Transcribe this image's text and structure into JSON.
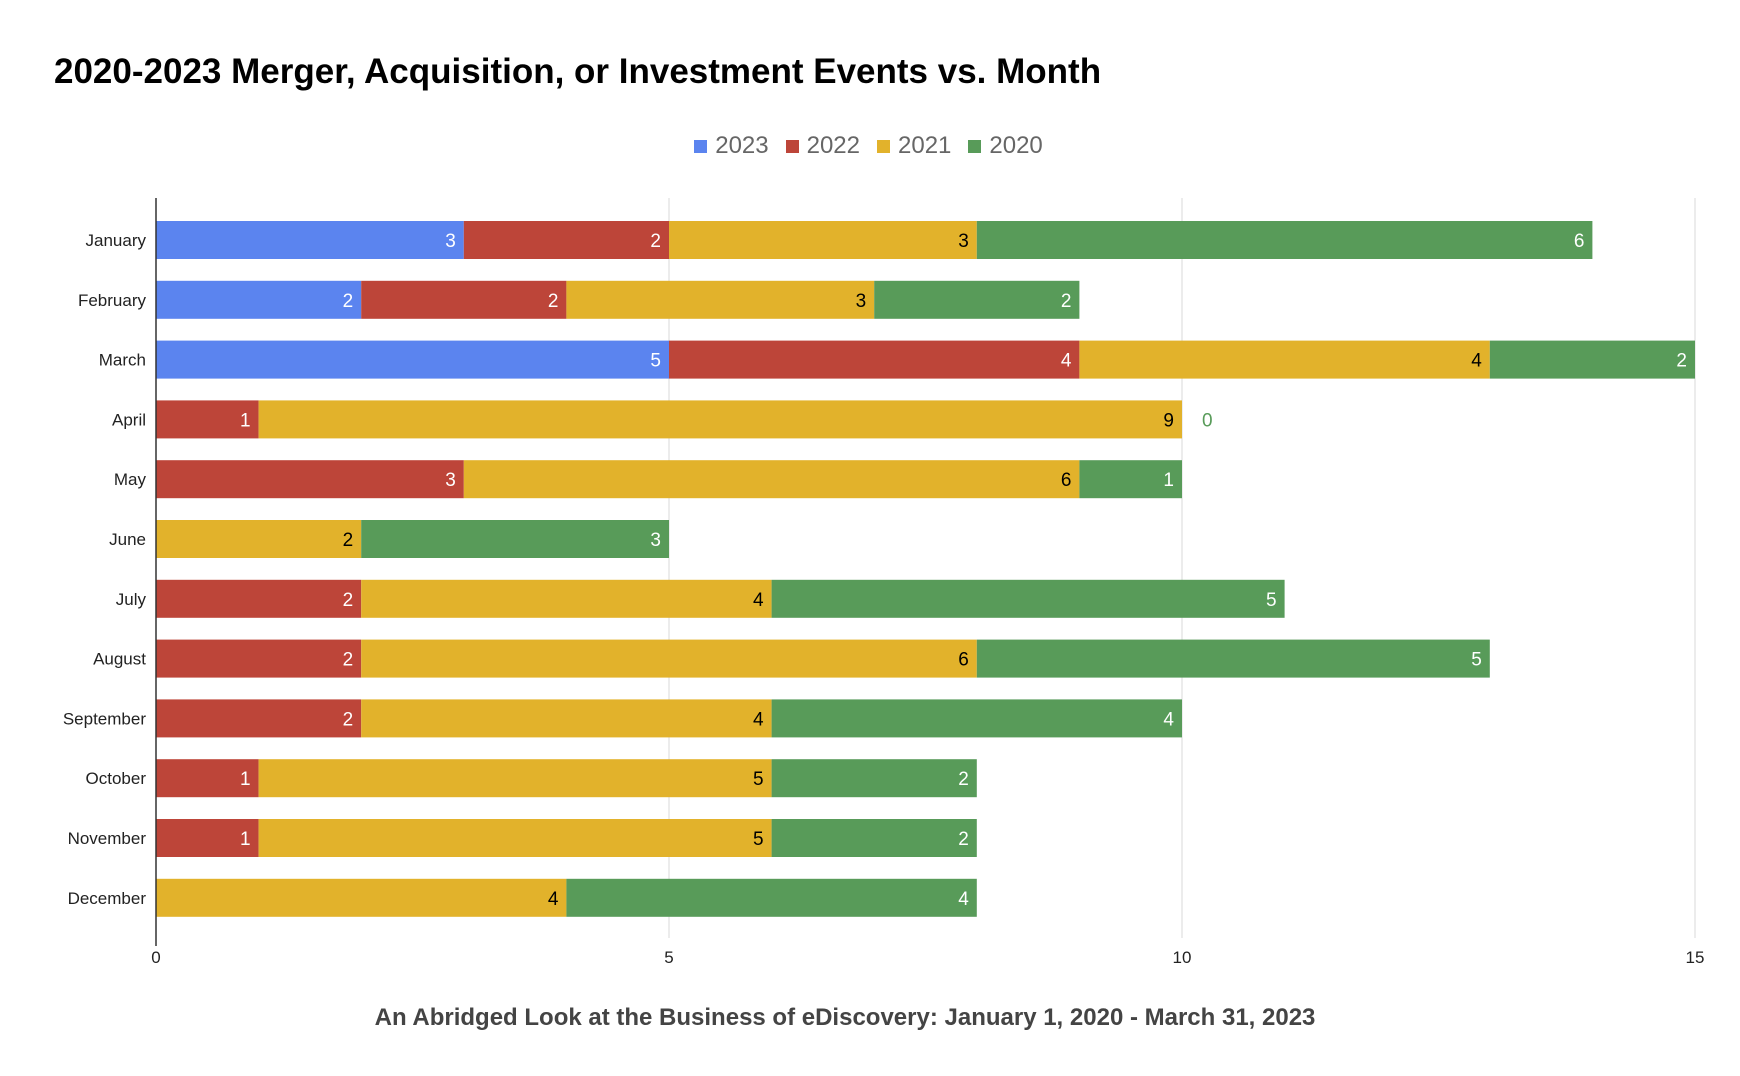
{
  "chart_data": {
    "type": "bar",
    "orientation": "horizontal",
    "stacked": true,
    "title": "2020-2023 Merger, Acquisition, or Investment Events vs. Month",
    "caption": "An Abridged Look at the Business of eDiscovery: January 1, 2020 - March 31, 2023",
    "categories": [
      "January",
      "February",
      "March",
      "April",
      "May",
      "June",
      "July",
      "August",
      "September",
      "October",
      "November",
      "December"
    ],
    "series": [
      {
        "name": "2023",
        "color": "#5b84ef",
        "label_color": "#ffffff",
        "values": [
          3,
          2,
          5,
          null,
          null,
          null,
          null,
          null,
          null,
          null,
          null,
          null
        ]
      },
      {
        "name": "2022",
        "color": "#bd4539",
        "label_color": "#ffffff",
        "values": [
          2,
          2,
          4,
          1,
          3,
          0,
          2,
          2,
          2,
          1,
          1,
          0
        ]
      },
      {
        "name": "2021",
        "color": "#e2b22b",
        "label_color": "#000000",
        "values": [
          3,
          3,
          4,
          9,
          6,
          2,
          4,
          6,
          4,
          5,
          5,
          4
        ]
      },
      {
        "name": "2020",
        "color": "#589b59",
        "label_color": "#ffffff",
        "values": [
          6,
          2,
          2,
          0,
          1,
          3,
          5,
          5,
          4,
          2,
          2,
          4
        ]
      }
    ],
    "xlim": [
      0,
      15
    ],
    "xticks": [
      "0",
      "5",
      "10",
      "15"
    ],
    "grid": true,
    "legend_position": "top"
  }
}
